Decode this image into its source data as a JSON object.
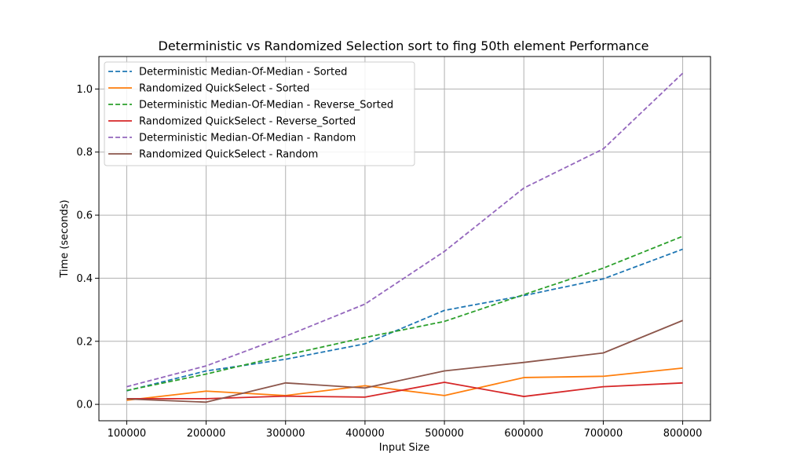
{
  "chart_data": {
    "type": "line",
    "title": "Deterministic vs Randomized Selection sort to fing 50th element Performance",
    "xlabel": "Input Size",
    "ylabel": "Time (seconds)",
    "x": [
      100000,
      200000,
      300000,
      400000,
      500000,
      600000,
      700000,
      800000
    ],
    "x_ticks": [
      "100000",
      "200000",
      "300000",
      "400000",
      "500000",
      "600000",
      "700000",
      "800000"
    ],
    "y_ticks": [
      "0.0",
      "0.2",
      "0.4",
      "0.6",
      "0.8",
      "1.0"
    ],
    "xlim": [
      65000,
      835000
    ],
    "ylim": [
      -0.052,
      1.103
    ],
    "grid": true,
    "legend_position": "top-left",
    "series": [
      {
        "name": "Deterministic Median-Of-Median - Sorted",
        "color": "#1f77b4",
        "dash": true,
        "values": [
          0.043,
          0.106,
          0.143,
          0.192,
          0.298,
          0.345,
          0.398,
          0.492
        ]
      },
      {
        "name": "Randomized QuickSelect - Sorted",
        "color": "#ff7f0e",
        "dash": false,
        "values": [
          0.013,
          0.042,
          0.028,
          0.059,
          0.028,
          0.085,
          0.089,
          0.115
        ]
      },
      {
        "name": "Deterministic Median-Of-Median - Reverse_Sorted",
        "color": "#2ca02c",
        "dash": true,
        "values": [
          0.044,
          0.096,
          0.156,
          0.212,
          0.263,
          0.348,
          0.432,
          0.533
        ]
      },
      {
        "name": "Randomized QuickSelect - Reverse_Sorted",
        "color": "#d62728",
        "dash": false,
        "values": [
          0.018,
          0.018,
          0.026,
          0.023,
          0.07,
          0.025,
          0.056,
          0.068
        ]
      },
      {
        "name": "Deterministic Median-Of-Median - Random",
        "color": "#9467bd",
        "dash": true,
        "values": [
          0.056,
          0.122,
          0.216,
          0.318,
          0.485,
          0.686,
          0.81,
          1.05
        ]
      },
      {
        "name": "Randomized QuickSelect - Random",
        "color": "#8c564b",
        "dash": false,
        "values": [
          0.017,
          0.007,
          0.068,
          0.052,
          0.106,
          0.133,
          0.163,
          0.266
        ]
      }
    ]
  }
}
